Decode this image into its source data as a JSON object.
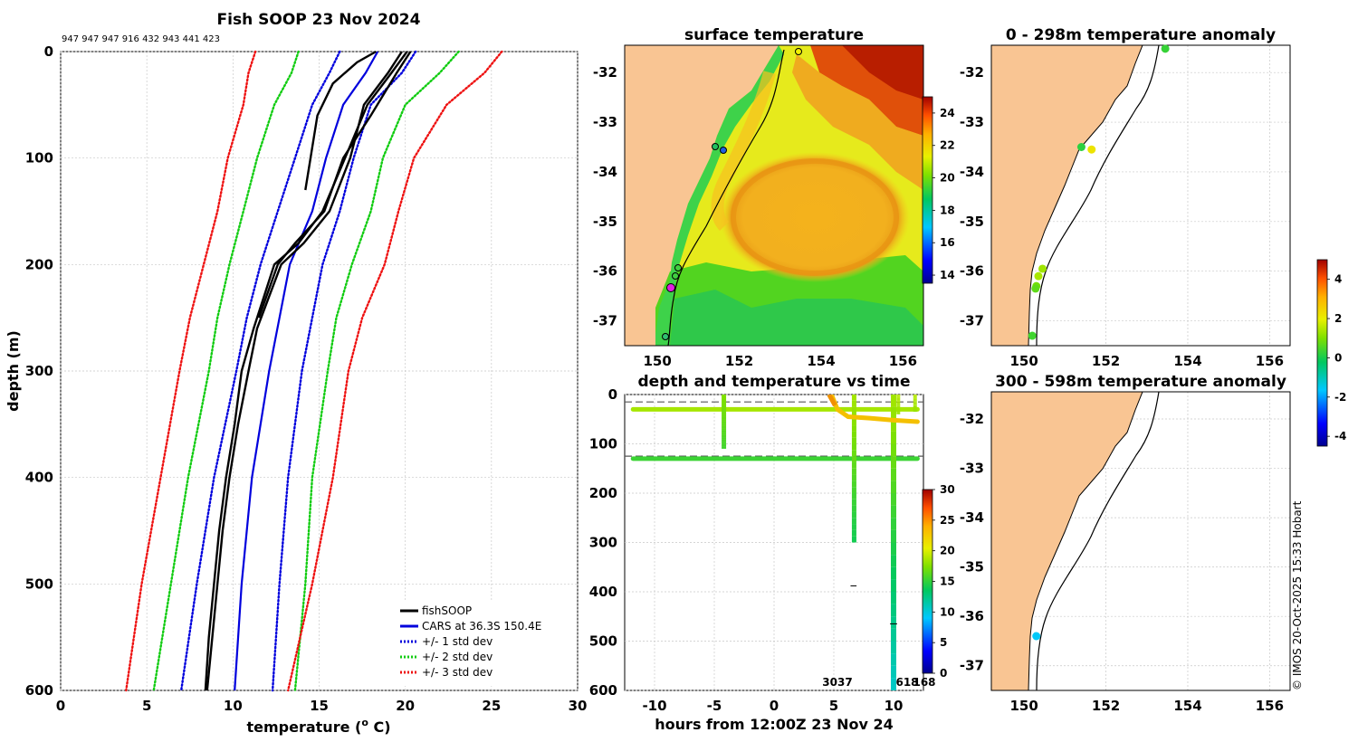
{
  "chart_data": [
    {
      "id": "profile",
      "type": "line",
      "title": "Fish SOOP 23 Nov 2024",
      "subtitle": "947 947 947 916 432 943 441 423",
      "xlabel": "temperature (o C)",
      "xlabel_text": "temperature (",
      "xlabel_sup": "o",
      "xlabel_end": " C)",
      "ylabel": "depth (m)",
      "xlim": [
        0,
        30
      ],
      "ylim": [
        600,
        0
      ],
      "xticks": [
        "0",
        "5",
        "10",
        "15",
        "20",
        "25",
        "30"
      ],
      "yticks": [
        "0",
        "100",
        "200",
        "300",
        "400",
        "500",
        "600"
      ],
      "grid": true,
      "legend": {
        "position": "bottom-right",
        "entries": [
          "fishSOOP",
          "CARS at 36.3S 150.4E",
          "+/- 1 std dev",
          "+/- 2 std dev",
          "+/- 3 std dev"
        ]
      },
      "depth": [
        0,
        20,
        50,
        100,
        150,
        200,
        250,
        300,
        400,
        500,
        600
      ],
      "series": [
        {
          "name": "CARS at 36.3S 150.4E",
          "color": "#0000dd",
          "style": "solid",
          "values": [
            18.4,
            17.7,
            16.4,
            15.4,
            14.6,
            13.3,
            12.7,
            12.1,
            11.1,
            10.5,
            10.1
          ]
        },
        {
          "name": "-1 std",
          "color": "#0000dd",
          "style": "dotted",
          "values": [
            16.2,
            15.6,
            14.6,
            13.6,
            12.6,
            11.6,
            10.8,
            10.2,
            8.9,
            7.9,
            7.0
          ]
        },
        {
          "name": "+1 std",
          "color": "#0000dd",
          "style": "dotted",
          "values": [
            20.6,
            19.8,
            18.0,
            17.0,
            16.2,
            15.2,
            14.6,
            14.0,
            13.2,
            12.7,
            12.3
          ]
        },
        {
          "name": "-2 std",
          "color": "#11cc11",
          "style": "dotted",
          "values": [
            13.8,
            13.4,
            12.4,
            11.4,
            10.6,
            9.8,
            9.1,
            8.6,
            7.4,
            6.4,
            5.4
          ]
        },
        {
          "name": "+2 std",
          "color": "#11cc11",
          "style": "dotted",
          "values": [
            23.1,
            22.0,
            20.0,
            18.7,
            18.0,
            16.9,
            16.0,
            15.5,
            14.6,
            14.2,
            13.6
          ]
        },
        {
          "name": "-3 std",
          "color": "#ee1111",
          "style": "dotted",
          "values": [
            11.3,
            10.9,
            10.6,
            9.7,
            9.1,
            8.3,
            7.5,
            6.9,
            5.8,
            4.7,
            3.8
          ]
        },
        {
          "name": "+3 std",
          "color": "#ee1111",
          "style": "dotted",
          "values": [
            25.6,
            24.6,
            22.4,
            20.5,
            19.6,
            18.8,
            17.5,
            16.7,
            15.8,
            14.6,
            13.2
          ]
        }
      ],
      "fish_profiles": [
        {
          "depth": [
            0,
            20,
            50,
            100,
            150,
            180,
            200,
            230,
            260,
            300,
            350,
            400,
            450,
            500,
            550,
            600
          ],
          "values": [
            20.1,
            19.2,
            17.8,
            16.5,
            15.2,
            13.8,
            12.4,
            11.8,
            11.2,
            10.5,
            10.1,
            9.6,
            9.2,
            8.9,
            8.6,
            8.4
          ]
        },
        {
          "depth": [
            0,
            20,
            50,
            100,
            150,
            180,
            200,
            230,
            260,
            300,
            350,
            400,
            450,
            500,
            550,
            600
          ],
          "values": [
            19.8,
            19.0,
            17.6,
            16.8,
            15.6,
            14.1,
            12.8,
            12.1,
            11.4,
            10.9,
            10.3,
            9.8,
            9.4,
            9.1,
            8.8,
            8.5
          ]
        },
        {
          "depth": [
            0,
            10,
            30,
            60,
            100,
            130
          ],
          "values": [
            18.3,
            17.2,
            15.8,
            14.9,
            14.5,
            14.2
          ]
        },
        {
          "depth": [
            0,
            20,
            60,
            100,
            150,
            180,
            200,
            250
          ],
          "values": [
            20.3,
            19.5,
            18.0,
            16.4,
            15.3,
            13.6,
            12.6,
            11.5
          ]
        }
      ]
    },
    {
      "id": "sst",
      "type": "heatmap",
      "title": "surface temperature",
      "xticks": [
        "150",
        "152",
        "154",
        "156"
      ],
      "yticks": [
        "-32",
        "-33",
        "-34",
        "-35",
        "-36",
        "-37"
      ],
      "xlim": [
        149.2,
        156.5
      ],
      "ylim": [
        -37.5,
        -31.45
      ],
      "colorbar": {
        "ticks": [
          "14",
          "16",
          "18",
          "20",
          "22",
          "24"
        ],
        "range": [
          13.5,
          25
        ]
      }
    },
    {
      "id": "timeplot",
      "type": "scatter",
      "title": "depth and temperature vs time",
      "xlabel": "hours from 12:00Z 23 Nov 24",
      "xticks": [
        "-10",
        "-5",
        "0",
        "5",
        "10"
      ],
      "yticks": [
        "0",
        "100",
        "200",
        "300",
        "400",
        "500",
        "600"
      ],
      "xlim": [
        -12.5,
        12.5
      ],
      "ylim": [
        600,
        0
      ],
      "annotations": [
        "3037",
        "618",
        "168"
      ],
      "dashed_depths": [
        15,
        125
      ],
      "colorbar": {
        "ticks": [
          "0",
          "5",
          "10",
          "15",
          "20",
          "25",
          "30"
        ],
        "range": [
          0,
          30
        ]
      }
    },
    {
      "id": "anomaly_top",
      "type": "scatter",
      "title": "0 - 298m temperature anomaly",
      "xticks": [
        "150",
        "152",
        "154",
        "156"
      ],
      "yticks": [
        "-32",
        "-33",
        "-34",
        "-35",
        "-36",
        "-37"
      ],
      "xlim": [
        149.2,
        156.5
      ],
      "ylim": [
        -37.5,
        -31.45
      ],
      "points": [
        {
          "lon": 153.45,
          "lat": -31.52,
          "anom": 0.3
        },
        {
          "lon": 151.4,
          "lat": -33.5,
          "anom": 0.2
        },
        {
          "lon": 151.65,
          "lat": -33.55,
          "anom": 2.2
        },
        {
          "lon": 150.45,
          "lat": -35.95,
          "anom": 1.3
        },
        {
          "lon": 150.35,
          "lat": -36.1,
          "anom": 1.4
        },
        {
          "lon": 150.3,
          "lat": -36.3,
          "anom": 0.9
        },
        {
          "lon": 150.28,
          "lat": -36.35,
          "anom": 0.7
        },
        {
          "lon": 150.2,
          "lat": -37.3,
          "anom": 0.4
        }
      ]
    },
    {
      "id": "anomaly_bottom",
      "type": "scatter",
      "title": "300 - 598m temperature anomaly",
      "xticks": [
        "150",
        "152",
        "154",
        "156"
      ],
      "yticks": [
        "-32",
        "-33",
        "-34",
        "-35",
        "-36",
        "-37"
      ],
      "xlim": [
        149.2,
        156.5
      ],
      "ylim": [
        -37.5,
        -31.45
      ],
      "points": [
        {
          "lon": 150.3,
          "lat": -36.4,
          "anom": -1.6
        }
      ]
    },
    {
      "id": "anomaly_colorbar",
      "type": "heatmap",
      "ticks": [
        "4",
        "2",
        "0",
        "-2",
        "-4"
      ],
      "range": [
        -4.5,
        5
      ]
    }
  ],
  "credit": "© IMOS 20-Oct-2025 15:33 Hobart",
  "colors": {
    "land": "#f9c593",
    "grid": "#c8c8c8"
  }
}
